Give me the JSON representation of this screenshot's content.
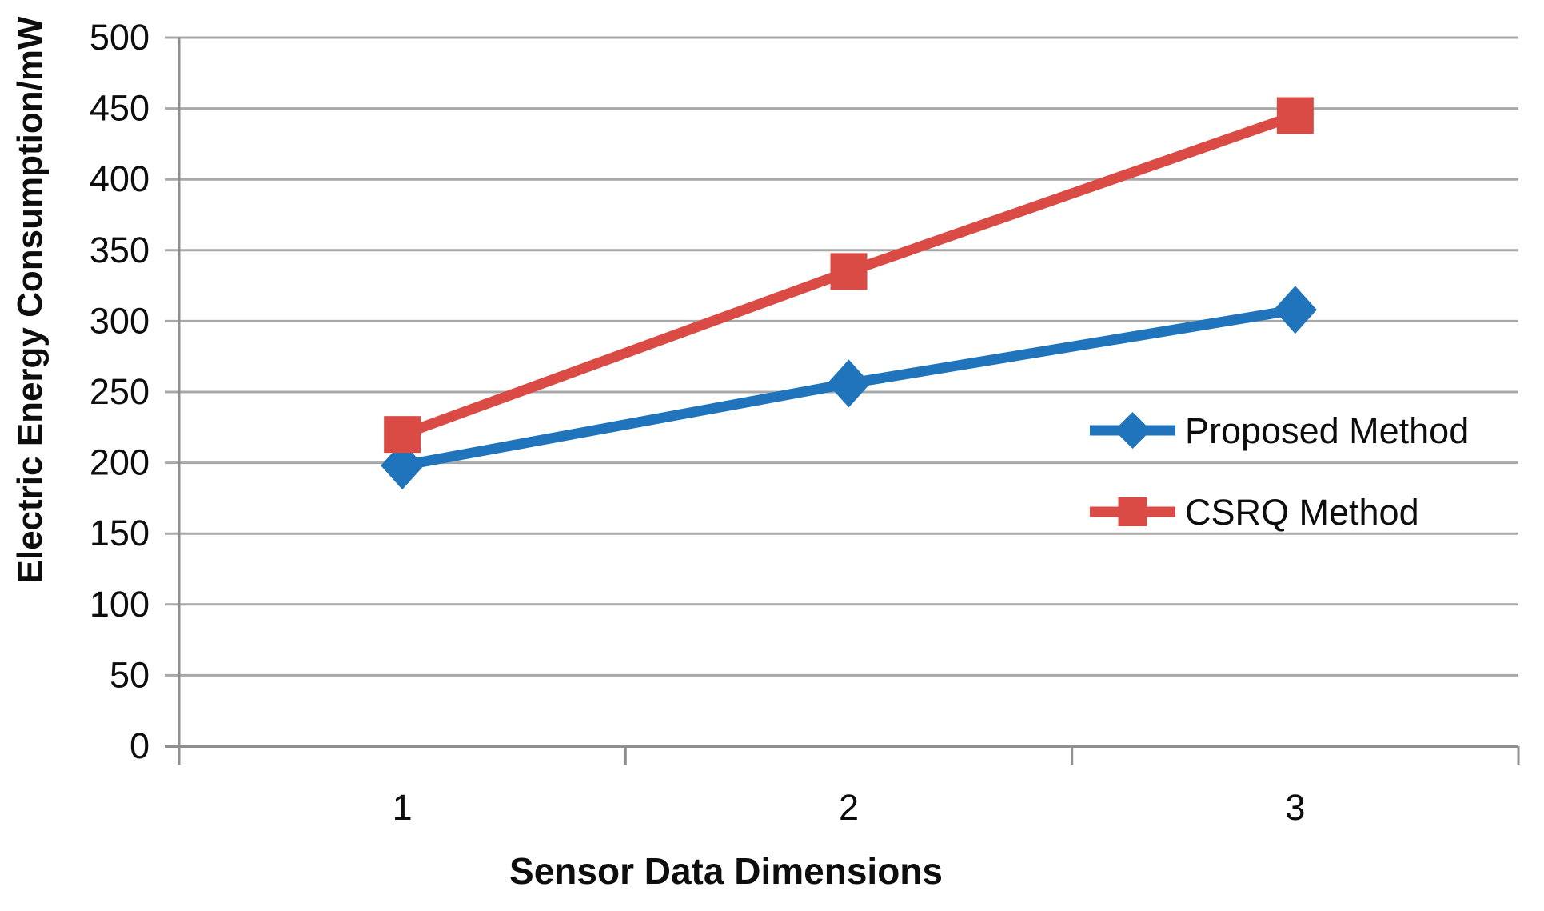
{
  "chart_data": {
    "type": "line",
    "title": "",
    "xlabel": "Sensor Data Dimensions",
    "ylabel": "Electric Energy Consumption/mW",
    "categories": [
      "1",
      "2",
      "3"
    ],
    "series": [
      {
        "name": "Proposed Method",
        "marker": "diamond",
        "color": "#2074bc",
        "values": [
          198,
          256,
          308
        ]
      },
      {
        "name": "CSRQ Method",
        "marker": "square",
        "color": "#db4b45",
        "values": [
          220,
          335,
          445
        ]
      }
    ],
    "ylim": [
      0,
      500
    ],
    "ytick_step": 50,
    "ytick_labels": [
      "0",
      "50",
      "100",
      "150",
      "200",
      "250",
      "300",
      "350",
      "400",
      "450",
      "500"
    ],
    "grid": "horizontal",
    "legend_position": "inside-right-middle",
    "colors": {
      "grid": "#a8a8a8",
      "axis": "#8f8f8f",
      "text": "#0d0d0d",
      "background": "#ffffff"
    }
  }
}
